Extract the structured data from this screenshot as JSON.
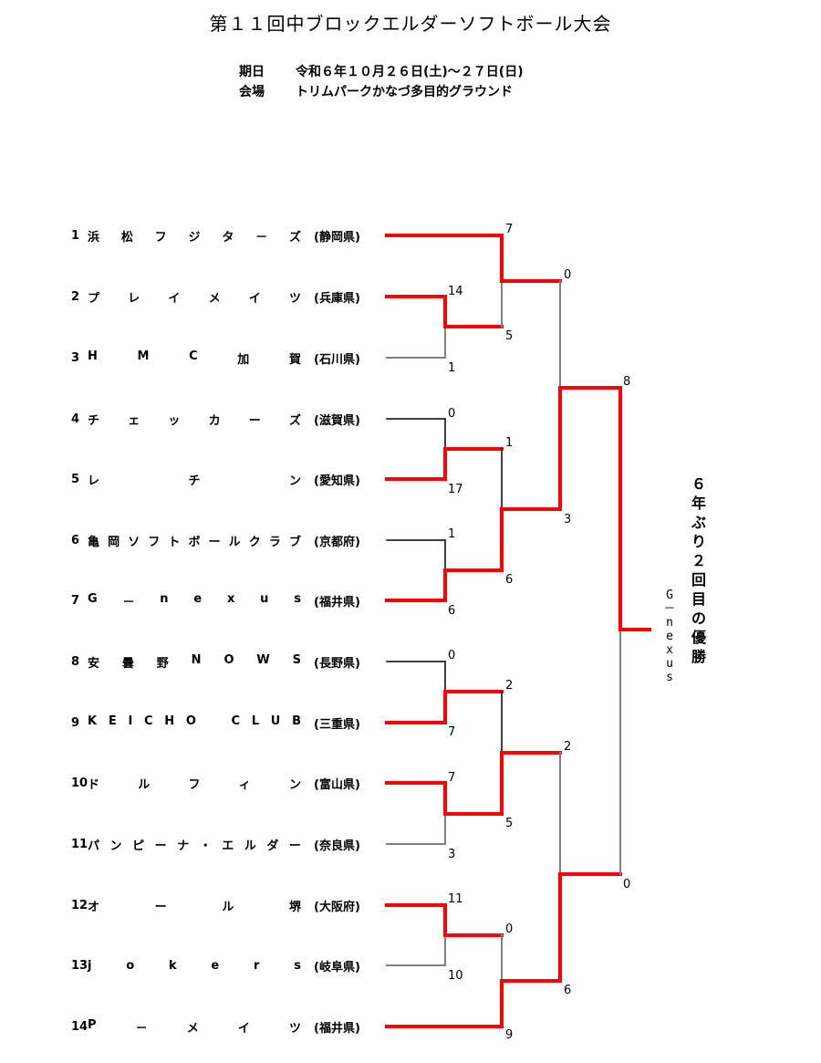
{
  "header": {
    "title": "第１１回中ブロックエルダーソフトボール大会",
    "date_label": "期日",
    "date_value": "令和６年１０月２６日(土)～２７日(日)",
    "venue_label": "会場",
    "venue_value": "トリムパークかなづ多目的グラウンド"
  },
  "teams": [
    {
      "no": "1",
      "name": "浜松フジタ－ズ",
      "pref": "(静岡県)"
    },
    {
      "no": "2",
      "name": "プレイメイツ",
      "pref": "(兵庫県)"
    },
    {
      "no": "3",
      "name": "HMC加賀",
      "pref": "(石川県)"
    },
    {
      "no": "4",
      "name": "チェッカーズ",
      "pref": "(滋賀県)"
    },
    {
      "no": "5",
      "name": "レ　チ　ン",
      "pref": "(愛知県)"
    },
    {
      "no": "6",
      "name": "亀岡ソフトボールクラブ",
      "pref": "(京都府)"
    },
    {
      "no": "7",
      "name": "G－nexus",
      "pref": "(福井県)"
    },
    {
      "no": "8",
      "name": "安曇野NOWS",
      "pref": "(長野県)"
    },
    {
      "no": "9",
      "name": "KEICHO　CLUB",
      "pref": "(三重県)"
    },
    {
      "no": "10",
      "name": "ドルフィン",
      "pref": "(富山県)"
    },
    {
      "no": "11",
      "name": "パンピーナ・エルダー",
      "pref": "(奈良県)"
    },
    {
      "no": "12",
      "name": "オール堺",
      "pref": "(大阪府)"
    },
    {
      "no": "13",
      "name": "jokers",
      "pref": "(岐阜県)"
    },
    {
      "no": "14",
      "name": "P－メイツ",
      "pref": "(福井県)"
    }
  ],
  "scores": {
    "r1_2": "14",
    "r1_3": "1",
    "r1_4": "0",
    "r1_5": "17",
    "r1_6": "1",
    "r1_7": "6",
    "r1_8": "0",
    "r1_9": "7",
    "r1_10": "7",
    "r1_11": "3",
    "r1_12": "11",
    "r1_13": "10",
    "r2_top": "7",
    "r2_2": "5",
    "r2_b": "1",
    "r2_c": "6",
    "r2_d": "2",
    "r2_e": "5",
    "r2_f": "0",
    "r2_bottom": "9",
    "sf_1": "0",
    "sf_2": "3",
    "sf_3": "2",
    "sf_4": "6",
    "f_1": "8",
    "f_2": "0"
  },
  "champion": "G－nexus",
  "note": "６年ぶり２回目の優勝",
  "colors": {
    "win": "#ff0000",
    "lose": "#000000"
  }
}
